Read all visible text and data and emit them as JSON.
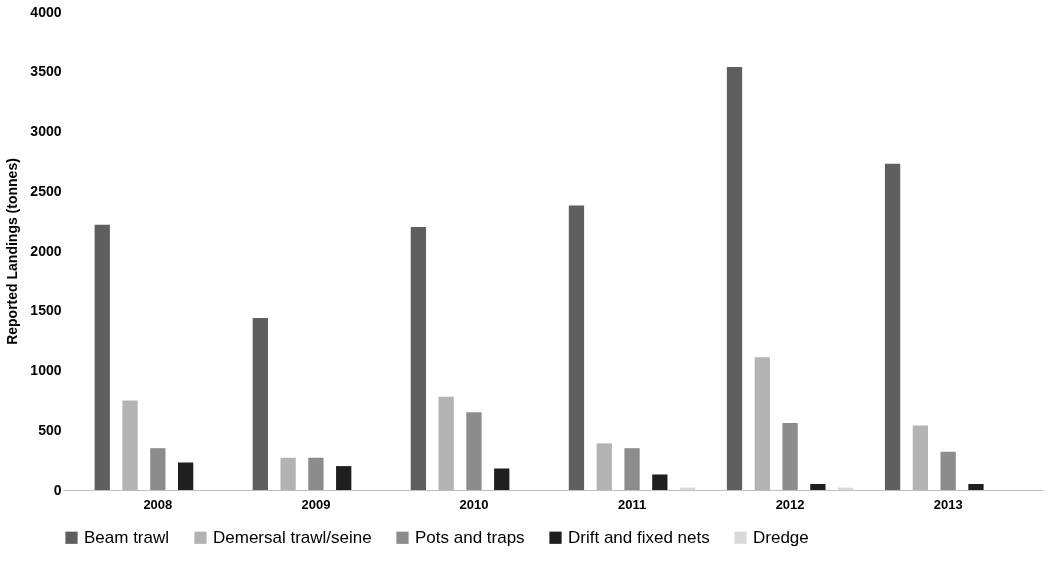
{
  "chart_data": {
    "type": "bar",
    "ylabel": "Reported Landings (tonnes)",
    "categories": [
      "2008",
      "2009",
      "2010",
      "2011",
      "2012",
      "2013"
    ],
    "series": [
      {
        "name": "Beam trawl",
        "color": "#5f5f5f",
        "values": [
          2220,
          1440,
          2200,
          2380,
          3540,
          2730
        ]
      },
      {
        "name": "Demersal trawl/seine",
        "color": "#b3b3b3",
        "values": [
          750,
          270,
          780,
          390,
          1110,
          540
        ]
      },
      {
        "name": "Pots and traps",
        "color": "#8c8c8c",
        "values": [
          350,
          270,
          650,
          350,
          560,
          320
        ]
      },
      {
        "name": "Drift and fixed nets",
        "color": "#1f1f1f",
        "values": [
          230,
          200,
          180,
          130,
          50,
          50
        ]
      },
      {
        "name": "Dredge",
        "color": "#d9d9d9",
        "values": [
          0,
          0,
          null,
          20,
          20,
          null
        ]
      }
    ],
    "ylim": [
      0,
      4000
    ],
    "yticks": [
      0,
      500,
      1000,
      1500,
      2000,
      2500,
      3000,
      3500,
      4000
    ],
    "grid": false,
    "legend": "bottom"
  }
}
